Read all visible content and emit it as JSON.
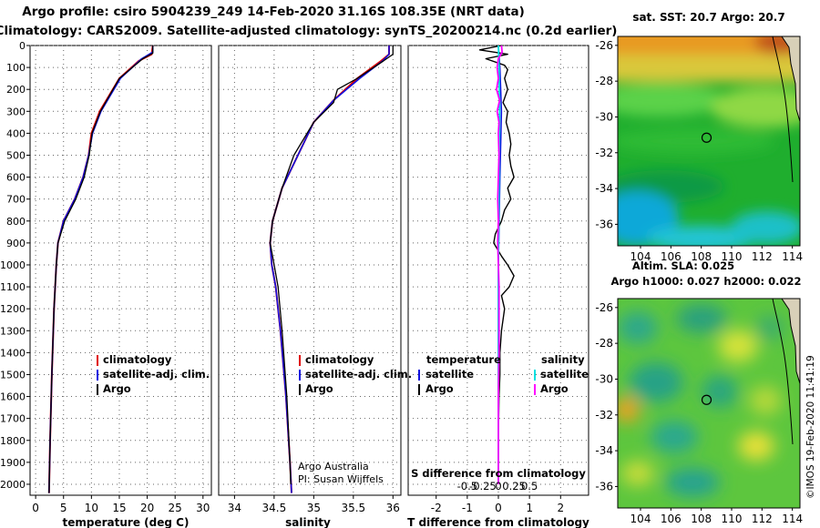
{
  "title_line1": "Argo profile: csiro 5904239_249 14-Feb-2020 31.16S 108.35E (NRT data)",
  "title_line2": "Climatology: CARS2009. Satellite-adjusted climatology: synTS_20200214.nc (0.2d earlier)",
  "watermark": "©IMOS 19-Feb-2020 11:41:19",
  "colors": {
    "climatology": "#e00000",
    "satellite": "#1010e0",
    "argo": "#000000",
    "satellite_s": "#00e0e0",
    "argo_s": "#ff00ff"
  },
  "chart_data": [
    {
      "id": "temperature",
      "type": "line",
      "xlabel": "temperature (deg C)",
      "xlim": [
        -1,
        31.5
      ],
      "ylim": [
        0,
        2050
      ],
      "xticks": [
        0,
        5,
        10,
        15,
        20,
        25,
        30
      ],
      "yticks": [
        0,
        100,
        200,
        300,
        400,
        500,
        600,
        700,
        800,
        900,
        1000,
        1100,
        1200,
        1300,
        1400,
        1500,
        1600,
        1700,
        1800,
        1900,
        2000
      ],
      "legend": [
        "climatology",
        "satellite-adj. clim.",
        "Argo"
      ],
      "series": [
        {
          "name": "climatology",
          "depth": [
            0,
            40,
            70,
            150,
            300,
            400,
            500,
            600,
            700,
            800,
            900,
            1000,
            1200,
            1500,
            1800,
            2040
          ],
          "values": [
            21,
            20.8,
            18.5,
            15,
            11.5,
            10,
            9.5,
            8.5,
            7,
            5,
            4,
            3.7,
            3.3,
            2.9,
            2.6,
            2.4
          ]
        },
        {
          "name": "satellite-adj. clim.",
          "depth": [
            0,
            30,
            60,
            150,
            300,
            400,
            500,
            600,
            700,
            800,
            900,
            1000,
            1200,
            1500,
            1800,
            2040
          ],
          "values": [
            21,
            21,
            19,
            15.2,
            11.7,
            10.2,
            9.5,
            8.5,
            7,
            5,
            4,
            3.7,
            3.3,
            2.9,
            2.6,
            2.4
          ]
        },
        {
          "name": "Argo",
          "depth": [
            0,
            35,
            60,
            150,
            300,
            400,
            500,
            600,
            700,
            800,
            900,
            1000,
            1200,
            1500,
            1800,
            2040
          ],
          "values": [
            21,
            21,
            19.2,
            15,
            11.6,
            10.1,
            9.6,
            8.7,
            7.2,
            5.2,
            4,
            3.7,
            3.3,
            2.9,
            2.6,
            2.4
          ]
        }
      ]
    },
    {
      "id": "salinity",
      "type": "line",
      "xlabel": "salinity",
      "xlim": [
        33.8,
        36.1
      ],
      "ylim": [
        0,
        2050
      ],
      "xticks": [
        34,
        34.5,
        35,
        35.5,
        36
      ],
      "xtick_labels": [
        "34",
        "34.5",
        "35",
        "35.5",
        "36"
      ],
      "legend": [
        "climatology",
        "satellite-adj. clim.",
        "Argo"
      ],
      "credit_line1": "Argo Australia",
      "credit_line2": "PI: Susan Wijffels",
      "series": [
        {
          "name": "climatology",
          "depth": [
            0,
            40,
            70,
            150,
            250,
            350,
            500,
            650,
            800,
            900,
            1000,
            1100,
            1300,
            1600,
            1900,
            2040
          ],
          "values": [
            35.95,
            35.95,
            35.85,
            35.55,
            35.25,
            35.0,
            34.8,
            34.6,
            34.48,
            34.45,
            34.47,
            34.52,
            34.58,
            34.65,
            34.7,
            34.72
          ]
        },
        {
          "name": "satellite-adj. clim.",
          "depth": [
            0,
            40,
            70,
            150,
            250,
            350,
            500,
            650,
            800,
            900,
            1000,
            1100,
            1300,
            1600,
            1900,
            2040
          ],
          "values": [
            35.95,
            35.95,
            35.87,
            35.58,
            35.25,
            35.0,
            34.8,
            34.6,
            34.48,
            34.45,
            34.47,
            34.52,
            34.58,
            34.65,
            34.7,
            34.72
          ]
        },
        {
          "name": "Argo",
          "depth": [
            0,
            40,
            70,
            150,
            200,
            260,
            350,
            500,
            650,
            800,
            900,
            1000,
            1100,
            1300,
            1600,
            1900,
            2000
          ],
          "values": [
            36.0,
            36.0,
            35.88,
            35.55,
            35.3,
            35.25,
            35.0,
            34.75,
            34.6,
            34.48,
            34.45,
            34.5,
            34.55,
            34.6,
            34.66,
            34.7,
            34.71
          ]
        }
      ]
    },
    {
      "id": "difference",
      "type": "line",
      "xlabel": "T difference from climatology",
      "xlabel_top": "S difference from climatology",
      "xlim": [
        -2.9,
        2.9
      ],
      "ylim": [
        0,
        2050
      ],
      "xticks": [
        -2,
        -1,
        0,
        1,
        2
      ],
      "s_ticks": [
        -0.5,
        -0.25,
        0,
        0.25,
        0.5
      ],
      "s_tick_labels": [
        "-0.5",
        "-0.25",
        "0",
        "0.25",
        "0.5"
      ],
      "legend_t_title": "temperature",
      "legend_s_title": "salinity",
      "legend_t": [
        "satellite",
        "Argo"
      ],
      "legend_s": [
        "satellite",
        "Argo"
      ],
      "series": [
        {
          "name": "T satellite",
          "depth": [
            0,
            100,
            300,
            600,
            1000,
            1500,
            2000
          ],
          "values": [
            0,
            0.05,
            0.1,
            0.05,
            0,
            0,
            0
          ]
        },
        {
          "name": "T Argo",
          "depth": [
            0,
            20,
            40,
            60,
            90,
            110,
            150,
            200,
            260,
            300,
            350,
            400,
            450,
            500,
            550,
            600,
            650,
            700,
            750,
            800,
            860,
            900,
            960,
            1000,
            1050,
            1100,
            1140,
            1200,
            1300,
            1400,
            1500,
            1600,
            1800,
            2000
          ],
          "values": [
            0.1,
            -0.6,
            0.3,
            -0.4,
            0.2,
            0.3,
            0.2,
            0.3,
            0.15,
            0.3,
            0.25,
            0.35,
            0.4,
            0.35,
            0.4,
            0.5,
            0.3,
            0.4,
            0.2,
            0.1,
            -0.1,
            -0.15,
            0.1,
            0.3,
            0.5,
            0.35,
            0.1,
            0.2,
            0.1,
            0.05,
            0.05,
            0.02,
            0,
            0
          ]
        },
        {
          "name": "S satellite",
          "depth": [
            0,
            100,
            300,
            600,
            1000,
            1500,
            2000
          ],
          "values": [
            0,
            0.01,
            0.02,
            0.01,
            0,
            0,
            0
          ]
        },
        {
          "name": "S Argo",
          "depth": [
            0,
            30,
            60,
            100,
            150,
            200,
            250,
            300,
            350,
            400,
            500,
            600,
            700,
            800,
            900,
            1000,
            1100,
            1200,
            1400,
            1600,
            1800,
            2000
          ],
          "values": [
            0.05,
            0.06,
            0.0,
            -0.02,
            0.0,
            -0.03,
            0.02,
            -0.02,
            0.01,
            0.0,
            0.01,
            0.0,
            -0.01,
            0.0,
            -0.01,
            0.0,
            0.01,
            0.01,
            0.01,
            0.0,
            0.0,
            0.0
          ]
        }
      ]
    },
    {
      "id": "sst_map",
      "type": "heatmap",
      "title": "sat. SST: 20.7 Argo: 20.7",
      "lon_ticks": [
        104,
        106,
        108,
        110,
        112,
        114
      ],
      "lat_ticks": [
        -26,
        -28,
        -30,
        -32,
        -34,
        -36
      ],
      "lon_range": [
        102.5,
        114.5
      ],
      "lat_range": [
        -37.2,
        -25.5
      ],
      "float_position": {
        "lon": 108.35,
        "lat": -31.16
      }
    },
    {
      "id": "sla_map",
      "type": "heatmap",
      "title1": "Altim. SLA: 0.025",
      "title2": "Argo h1000: 0.027 h2000: 0.022",
      "lon_ticks": [
        104,
        106,
        108,
        110,
        112,
        114
      ],
      "lat_ticks": [
        -26,
        -28,
        -30,
        -32,
        -34,
        -36
      ],
      "lon_range": [
        102.5,
        114.5
      ],
      "lat_range": [
        -37.2,
        -25.5
      ],
      "float_position": {
        "lon": 108.35,
        "lat": -31.16
      }
    }
  ]
}
